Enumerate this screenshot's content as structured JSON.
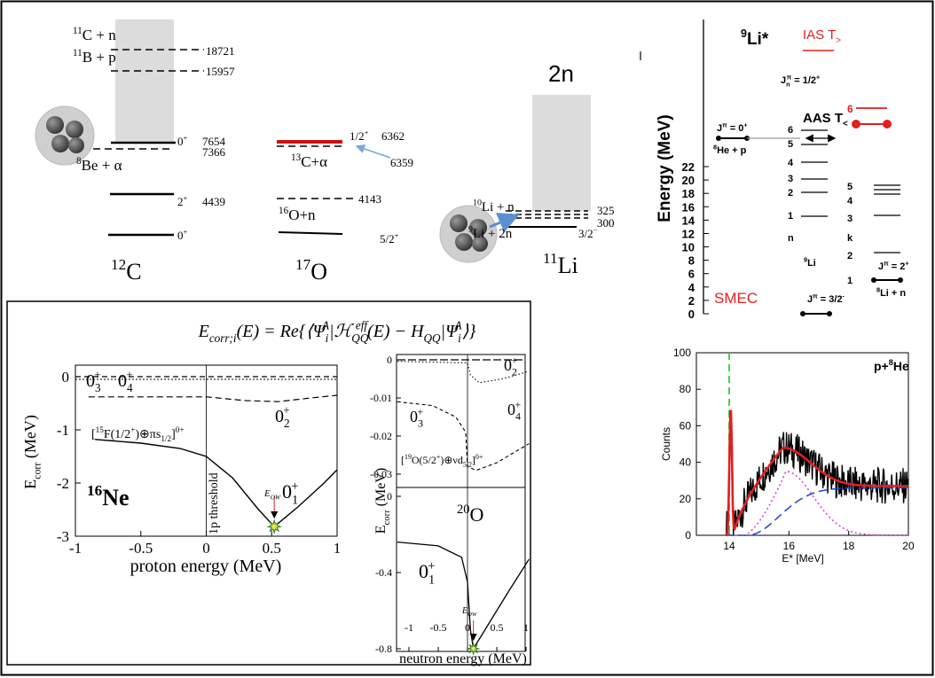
{
  "top_left": {
    "c12": {
      "ch_11c": [
        {
          "sup": "11"
        },
        "C + n"
      ],
      "e_18721": "18721",
      "ch_11b": [
        {
          "sup": "11"
        },
        "B + p"
      ],
      "e_15957": "15957",
      "j_7654": [
        "0",
        {
          "sup": "+"
        }
      ],
      "e_7654": "7654",
      "e_7366": "7366",
      "ch_8be": [
        {
          "sup": "8"
        },
        "Be + α"
      ],
      "j_4439": [
        "2",
        {
          "sup": "+"
        }
      ],
      "e_4439": "4439",
      "j_gs": [
        "0",
        {
          "sup": "+"
        }
      ],
      "name": [
        {
          "sup": "12"
        },
        "C"
      ]
    },
    "o17": {
      "j_6362": [
        "1/2",
        {
          "sup": "+"
        }
      ],
      "e_6362": "6362",
      "ch_13c": [
        {
          "sup": "13"
        },
        "C+α"
      ],
      "e_6359": "6359",
      "e_4143": "4143",
      "ch_16o": [
        {
          "sup": "16"
        },
        "O+n"
      ],
      "j_gs": [
        "5/2",
        {
          "sup": "+"
        }
      ],
      "name": [
        {
          "sup": "17"
        },
        "O"
      ]
    },
    "li11": {
      "halo": "2n",
      "ch_10li": [
        {
          "sup": "10"
        },
        "Li + n"
      ],
      "e_325": "325",
      "e_300": "300",
      "ch_9li": [
        {
          "sup": "9"
        },
        "Li + 2n"
      ],
      "j_gs": [
        "3/2",
        {
          "sup": "−"
        }
      ],
      "name": [
        {
          "sup": "11"
        },
        "Li"
      ]
    }
  },
  "li9_levels": {
    "axis_title": "Energy (MeV)",
    "yticks": [
      0,
      2,
      4,
      6,
      8,
      10,
      12,
      14,
      16,
      18,
      20,
      22
    ],
    "title": [
      {
        "sup": "9"
      },
      "Li*"
    ],
    "ias": [
      "IAS T",
      {
        "sub": ">"
      }
    ],
    "jn": [
      "J",
      {
        "sup": "π",
        "sub": "n"
      },
      " = 1/2",
      {
        "sup": "+"
      }
    ],
    "j_8he": [
      "J",
      {
        "sup": "π"
      },
      " = 0",
      {
        "sup": "+"
      }
    ],
    "ch_8he": [
      {
        "sup": "8"
      },
      "He + p"
    ],
    "aas": [
      "AAS T",
      {
        "sub": "<"
      }
    ],
    "li9_level_labels": [
      "6",
      "5",
      "4",
      "3",
      "2",
      "1",
      "n"
    ],
    "li9": [
      {
        "sup": "9"
      },
      "Li"
    ],
    "ias_level": "6",
    "li8_level_labels": [
      "5",
      "4",
      "3",
      "k",
      "2",
      "1"
    ],
    "j_8li": [
      "J",
      {
        "sup": "π"
      },
      " = 2",
      {
        "sup": "+"
      }
    ],
    "ch_8li": [
      {
        "sup": "8"
      },
      "Li + n"
    ],
    "smec": "SMEC",
    "j_9li": [
      "J",
      {
        "sup": "π"
      },
      " = 3/2",
      {
        "sup": "-"
      }
    ]
  },
  "spectrum": {
    "title": [
      "p+",
      {
        "sup": "8"
      },
      "He"
    ],
    "y_label": "Counts",
    "x_label": "E* [MeV]",
    "yticks": [
      0,
      20,
      40,
      60,
      80,
      100
    ],
    "xticks": [
      14,
      16,
      18,
      20
    ]
  },
  "correlation": {
    "formula": [
      "E",
      {
        "sub": "corr;i"
      },
      "(E) = Re{⟨Ψ",
      {
        "sup": "A",
        "sub": "i"
      },
      "|ℋ",
      {
        "sup": "eff",
        "sub": "QQ"
      },
      "(E) − H",
      {
        "sub": "QQ"
      },
      "|Ψ",
      {
        "sup": "A",
        "sub": "i"
      },
      "⟩}"
    ],
    "ne16": {
      "y_label": [
        "E",
        {
          "sub": "corr"
        },
        " (MeV)"
      ],
      "x_label": "proton energy (MeV)",
      "yticks": [
        0,
        -1,
        -2,
        -3
      ],
      "xticks": [
        -1,
        -0.5,
        0,
        0.5,
        1
      ],
      "s03": [
        "0",
        {
          "sup": "+",
          "sub": "3"
        }
      ],
      "s04": [
        "0",
        {
          "sup": "+",
          "sub": "4"
        }
      ],
      "s02": [
        "0",
        {
          "sup": "+",
          "sub": "2"
        }
      ],
      "channel": [
        "[",
        {
          "sup": "15"
        },
        "F(1/2",
        {
          "sup": "+"
        },
        ")⊕πs",
        {
          "sub": "1/2"
        },
        "]",
        {
          "sup": "0+"
        }
      ],
      "name": [
        {
          "sup": "16"
        },
        "Ne"
      ],
      "threshold": "1p threshold",
      "eow": [
        "E",
        {
          "sub": "OW"
        }
      ],
      "s01": [
        "0",
        {
          "sup": "+",
          "sub": "1"
        }
      ]
    },
    "o20": {
      "y_label": [
        "E",
        {
          "sub": "corr"
        },
        " (MeV)"
      ],
      "x_label": "neutron energy (MeV)",
      "yticks_top": [
        0,
        -0.01,
        -0.02,
        -0.03
      ],
      "yticks_bottom": [
        0,
        -0.4,
        -0.8
      ],
      "xticks": [
        -1,
        -0.5,
        0,
        0.5,
        1
      ],
      "s02": [
        "0",
        {
          "sup": "+",
          "sub": "2"
        }
      ],
      "s04": [
        "0",
        {
          "sup": "+",
          "sub": "4"
        }
      ],
      "s03": [
        "0",
        {
          "sup": "+",
          "sub": "3"
        }
      ],
      "channel": [
        "[",
        {
          "sup": "19"
        },
        "O(5/2",
        {
          "sup": "+"
        },
        ")⊕νd",
        {
          "sub": "5/2"
        },
        "]",
        {
          "sup": "0+"
        }
      ],
      "name": [
        {
          "sup": "20"
        },
        "O"
      ],
      "s01": [
        "0",
        {
          "sup": "+",
          "sub": "1"
        }
      ],
      "eow": [
        "E",
        {
          "sub": "OW"
        }
      ]
    }
  }
}
